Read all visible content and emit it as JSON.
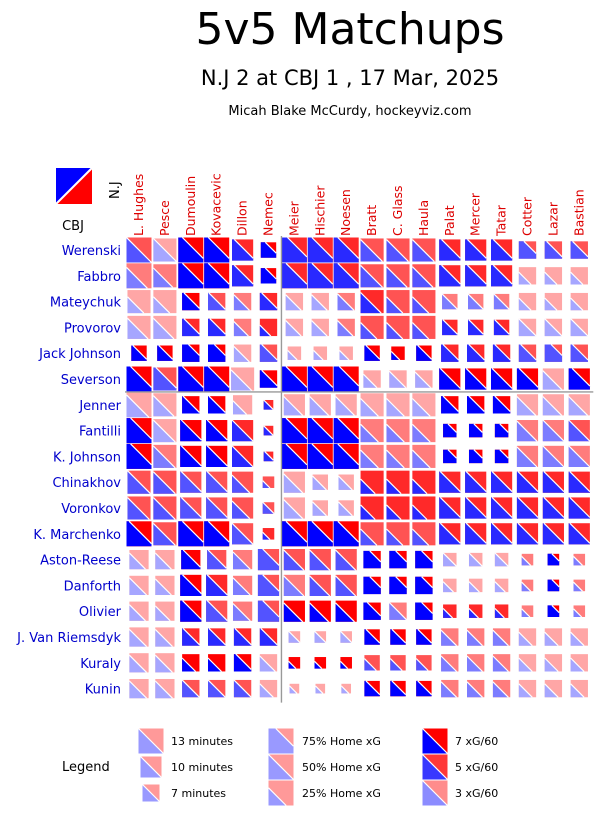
{
  "title": "5v5 Matchups",
  "subtitle": "N.J 2 at CBJ 1 , 17 Mar, 2025",
  "credit": "Micah Blake McCurdy, hockeyviz.com",
  "teams": {
    "home": "CBJ",
    "away": "N.J"
  },
  "colors": {
    "home": "#0000ff",
    "away": "#ff0000",
    "home_player_text": "#0000cc",
    "away_player_text": "#dd0000"
  },
  "legend": {
    "title": "Legend",
    "size_items": [
      "13 minutes",
      "10 minutes",
      "7 minutes"
    ],
    "share_items": [
      "75% Home xG",
      "50% Home xG",
      "25% Home xG"
    ],
    "rate_items": [
      "7 xG/60",
      "5 xG/60",
      "3 xG/60"
    ]
  },
  "chart_data": {
    "type": "heatmap",
    "title": "5v5 Matchups",
    "subtitle": "N.J 2 at CBJ 1 , 17 Mar, 2025",
    "note": "Each cell: square size = shared 5v5 minutes; blue/red split = share of expected goals (home CBJ blue, away N.J red); saturation = xG/60 rate",
    "columns_team": "N.J",
    "rows_team": "CBJ",
    "columns": [
      "L. Hughes",
      "Pesce",
      "Dumoulin",
      "Kovacevic",
      "Dillon",
      "Nemec",
      "Meier",
      "Hischier",
      "Noesen",
      "Bratt",
      "C. Glass",
      "Haula",
      "Palat",
      "Mercer",
      "Tatar",
      "Cotter",
      "Lazar",
      "Bastian"
    ],
    "rows": [
      "Werenski",
      "Fabbro",
      "Mateychuk",
      "Provorov",
      "Jack Johnson",
      "Severson",
      "Jenner",
      "Fantilli",
      "K. Johnson",
      "Chinakhov",
      "Voronkov",
      "K. Marchenko",
      "Aston-Reese",
      "Danforth",
      "Olivier",
      "J. Van Riemsdyk",
      "Kuraly",
      "Kunin"
    ],
    "row_separators_after": [
      5
    ],
    "column_separators_after": [
      5
    ],
    "cells": [
      {
        "s": [
          13,
          12,
          13,
          13,
          11,
          8,
          13,
          13,
          13,
          12,
          12,
          12,
          11,
          11,
          11,
          9,
          9,
          9
        ],
        "h": [
          50,
          50,
          65,
          65,
          60,
          75,
          70,
          65,
          65,
          45,
          45,
          45,
          60,
          60,
          60,
          75,
          60,
          60
        ],
        "r": [
          5,
          3,
          7,
          7,
          6,
          7,
          6,
          6,
          6,
          5,
          5,
          5,
          6,
          6,
          6,
          5,
          5,
          5
        ]
      },
      {
        "s": [
          13,
          12,
          13,
          13,
          11,
          8,
          13,
          13,
          13,
          12,
          12,
          12,
          11,
          11,
          11,
          9,
          9,
          9
        ],
        "h": [
          35,
          35,
          65,
          65,
          60,
          75,
          65,
          65,
          65,
          45,
          40,
          40,
          60,
          60,
          60,
          25,
          25,
          25
        ],
        "r": [
          4,
          4,
          7,
          7,
          6,
          7,
          6,
          6,
          6,
          5,
          5,
          5,
          6,
          6,
          6,
          3,
          3,
          3
        ]
      },
      {
        "s": [
          12,
          12,
          9,
          9,
          9,
          9,
          9,
          9,
          9,
          12,
          12,
          12,
          8,
          8,
          8,
          9,
          9,
          9
        ],
        "h": [
          25,
          25,
          60,
          55,
          40,
          60,
          40,
          40,
          45,
          40,
          25,
          25,
          50,
          50,
          50,
          25,
          25,
          25
        ],
        "r": [
          3,
          3,
          7,
          5,
          4,
          6,
          3,
          3,
          4,
          6,
          5,
          5,
          4,
          4,
          4,
          3,
          3,
          3
        ]
      },
      {
        "s": [
          12,
          12,
          9,
          9,
          9,
          9,
          9,
          9,
          9,
          12,
          12,
          12,
          8,
          8,
          8,
          9,
          9,
          9
        ],
        "h": [
          40,
          40,
          60,
          60,
          35,
          20,
          40,
          40,
          40,
          25,
          25,
          25,
          55,
          55,
          55,
          50,
          50,
          50
        ],
        "r": [
          3,
          3,
          6,
          6,
          4,
          6,
          3,
          3,
          4,
          5,
          5,
          5,
          6,
          6,
          6,
          3,
          3,
          3
        ]
      },
      {
        "s": [
          8,
          8,
          9,
          9,
          9,
          9,
          7,
          7,
          7,
          8,
          7,
          8,
          9,
          9,
          9,
          9,
          9,
          9
        ],
        "h": [
          60,
          60,
          80,
          80,
          40,
          60,
          25,
          25,
          25,
          60,
          20,
          60,
          60,
          60,
          60,
          60,
          80,
          60
        ],
        "r": [
          7,
          7,
          7,
          7,
          3,
          5,
          3,
          3,
          3,
          7,
          7,
          7,
          6,
          6,
          6,
          5,
          5,
          5
        ]
      },
      {
        "s": [
          13,
          12,
          13,
          13,
          12,
          9,
          13,
          13,
          13,
          9,
          9,
          9,
          11,
          11,
          11,
          11,
          11,
          11
        ],
        "h": [
          65,
          60,
          65,
          65,
          40,
          60,
          65,
          65,
          70,
          30,
          45,
          40,
          55,
          55,
          55,
          60,
          40,
          65
        ],
        "r": [
          7,
          5,
          7,
          7,
          3,
          7,
          7,
          7,
          7,
          3,
          3,
          3,
          7,
          7,
          7,
          7,
          3,
          7
        ]
      },
      {
        "s": [
          13,
          12,
          9,
          9,
          10,
          5,
          11,
          11,
          11,
          12,
          12,
          12,
          9,
          9,
          9,
          11,
          11,
          11
        ],
        "h": [
          40,
          40,
          55,
          55,
          25,
          50,
          40,
          40,
          40,
          30,
          30,
          30,
          60,
          60,
          60,
          40,
          40,
          40
        ],
        "r": [
          3,
          3,
          7,
          7,
          3,
          6,
          3,
          3,
          3,
          3,
          3,
          3,
          7,
          7,
          7,
          3,
          3,
          3
        ]
      },
      {
        "s": [
          13,
          12,
          11,
          11,
          11,
          5,
          13,
          13,
          13,
          12,
          12,
          12,
          7,
          7,
          7,
          11,
          11,
          11
        ],
        "h": [
          65,
          45,
          55,
          55,
          50,
          50,
          65,
          65,
          65,
          30,
          30,
          30,
          80,
          80,
          80,
          45,
          50,
          50
        ],
        "r": [
          7,
          3,
          7,
          7,
          6,
          6,
          7,
          7,
          7,
          4,
          4,
          4,
          7,
          7,
          7,
          4,
          4,
          5
        ]
      },
      {
        "s": [
          13,
          12,
          11,
          11,
          11,
          5,
          13,
          13,
          13,
          12,
          12,
          12,
          7,
          7,
          7,
          11,
          11,
          11
        ],
        "h": [
          65,
          45,
          55,
          55,
          50,
          60,
          65,
          65,
          65,
          30,
          30,
          30,
          80,
          80,
          80,
          45,
          50,
          50
        ],
        "r": [
          7,
          4,
          7,
          7,
          6,
          6,
          7,
          7,
          7,
          4,
          4,
          4,
          7,
          7,
          7,
          4,
          4,
          4
        ]
      },
      {
        "s": [
          12,
          12,
          11,
          11,
          11,
          6,
          11,
          8,
          8,
          12,
          12,
          12,
          11,
          11,
          11,
          11,
          11,
          11
        ],
        "h": [
          50,
          45,
          55,
          55,
          35,
          20,
          40,
          40,
          40,
          20,
          20,
          20,
          55,
          55,
          55,
          55,
          55,
          55
        ],
        "r": [
          5,
          5,
          5,
          5,
          5,
          5,
          3,
          3,
          3,
          6,
          6,
          6,
          6,
          6,
          6,
          6,
          6,
          6
        ]
      },
      {
        "s": [
          12,
          12,
          11,
          11,
          11,
          6,
          11,
          8,
          8,
          12,
          12,
          12,
          11,
          11,
          11,
          11,
          11,
          11
        ],
        "h": [
          45,
          45,
          55,
          55,
          35,
          50,
          40,
          40,
          40,
          20,
          20,
          20,
          55,
          55,
          55,
          55,
          55,
          55
        ],
        "r": [
          5,
          5,
          5,
          5,
          5,
          5,
          3,
          3,
          3,
          6,
          6,
          6,
          6,
          6,
          6,
          6,
          6,
          6
        ]
      },
      {
        "s": [
          13,
          12,
          13,
          13,
          11,
          6,
          13,
          13,
          13,
          12,
          12,
          12,
          11,
          11,
          11,
          11,
          11,
          11
        ],
        "h": [
          60,
          45,
          65,
          65,
          50,
          20,
          65,
          65,
          65,
          25,
          25,
          25,
          55,
          55,
          55,
          55,
          55,
          55
        ],
        "r": [
          7,
          5,
          7,
          7,
          5,
          6,
          7,
          7,
          7,
          5,
          5,
          5,
          6,
          6,
          6,
          6,
          6,
          6
        ]
      },
      {
        "s": [
          10,
          10,
          10,
          10,
          10,
          11,
          11,
          11,
          11,
          9,
          9,
          9,
          7,
          7,
          7,
          6,
          6,
          6
        ],
        "h": [
          35,
          35,
          60,
          55,
          40,
          70,
          45,
          45,
          45,
          80,
          80,
          80,
          50,
          50,
          50,
          30,
          80,
          30
        ],
        "r": [
          3,
          3,
          7,
          5,
          4,
          5,
          5,
          5,
          5,
          7,
          7,
          7,
          3,
          3,
          3,
          4,
          7,
          4
        ]
      },
      {
        "s": [
          10,
          10,
          11,
          11,
          10,
          11,
          11,
          11,
          11,
          9,
          9,
          9,
          7,
          7,
          7,
          6,
          6,
          6
        ],
        "h": [
          40,
          35,
          60,
          55,
          40,
          70,
          45,
          45,
          45,
          80,
          80,
          80,
          30,
          30,
          30,
          30,
          80,
          30
        ],
        "r": [
          3,
          3,
          7,
          6,
          4,
          5,
          4,
          5,
          5,
          7,
          7,
          7,
          3,
          3,
          3,
          4,
          7,
          4
        ]
      },
      {
        "s": [
          10,
          10,
          11,
          11,
          10,
          11,
          11,
          11,
          11,
          9,
          9,
          9,
          7,
          7,
          7,
          6,
          6,
          6
        ],
        "h": [
          35,
          30,
          60,
          55,
          40,
          70,
          40,
          40,
          40,
          70,
          50,
          80,
          25,
          25,
          25,
          25,
          80,
          25
        ],
        "r": [
          3,
          3,
          7,
          5,
          4,
          5,
          7,
          7,
          7,
          7,
          4,
          7,
          6,
          6,
          6,
          4,
          7,
          4
        ]
      },
      {
        "s": [
          10,
          10,
          9,
          9,
          9,
          9,
          6,
          6,
          6,
          8,
          8,
          8,
          9,
          9,
          9,
          9,
          9,
          9
        ],
        "h": [
          40,
          40,
          55,
          55,
          55,
          55,
          50,
          50,
          50,
          60,
          60,
          60,
          40,
          40,
          40,
          30,
          30,
          30
        ],
        "r": [
          3,
          3,
          6,
          6,
          6,
          6,
          3,
          3,
          3,
          7,
          7,
          7,
          4,
          4,
          4,
          3,
          3,
          3
        ]
      },
      {
        "s": [
          10,
          10,
          9,
          9,
          9,
          9,
          6,
          6,
          6,
          8,
          8,
          8,
          9,
          9,
          9,
          9,
          9,
          9
        ],
        "h": [
          40,
          40,
          30,
          30,
          60,
          40,
          20,
          20,
          20,
          30,
          30,
          30,
          40,
          40,
          40,
          30,
          30,
          30
        ],
        "r": [
          3,
          3,
          7,
          7,
          7,
          3,
          7,
          7,
          7,
          5,
          5,
          5,
          4,
          4,
          4,
          3,
          3,
          3
        ]
      },
      {
        "s": [
          10,
          10,
          9,
          9,
          9,
          9,
          5,
          5,
          5,
          8,
          8,
          8,
          9,
          9,
          9,
          9,
          9,
          9
        ],
        "h": [
          40,
          40,
          50,
          50,
          50,
          30,
          30,
          30,
          30,
          60,
          60,
          60,
          40,
          40,
          40,
          30,
          30,
          30
        ],
        "r": [
          3,
          3,
          5,
          5,
          5,
          3,
          3,
          3,
          3,
          7,
          7,
          7,
          4,
          4,
          4,
          3,
          3,
          3
        ]
      }
    ]
  }
}
